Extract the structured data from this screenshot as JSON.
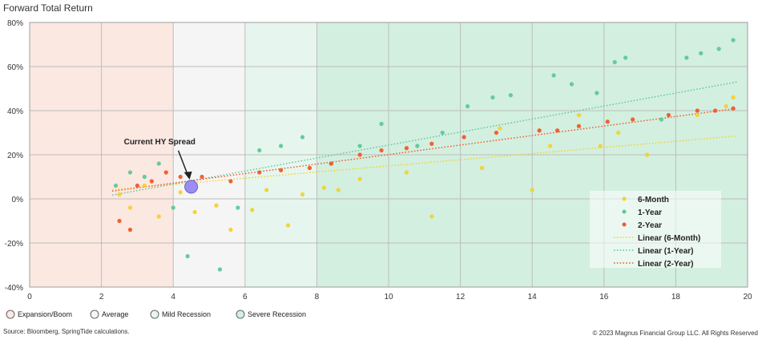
{
  "chart_data": {
    "type": "scatter",
    "title": "Forward Total Return",
    "xlabel": "",
    "ylabel": "",
    "xlim": [
      0,
      20
    ],
    "ylim": [
      -40,
      80
    ],
    "x_ticks": [
      "0",
      "2",
      "4",
      "6",
      "8",
      "10",
      "12",
      "14",
      "16",
      "18",
      "20"
    ],
    "y_ticks": [
      "-40%",
      "-20%",
      "0%",
      "20%",
      "40%",
      "60%",
      "80%"
    ],
    "grid": true,
    "legend_position": "right",
    "regimes": [
      {
        "name": "Expansion/Boom",
        "range": [
          0,
          4
        ],
        "color": "#fbe8e1"
      },
      {
        "name": "Average",
        "range": [
          4,
          6
        ],
        "color": "#f5f5f5"
      },
      {
        "name": "Mild Recession",
        "range": [
          6,
          8
        ],
        "color": "#e6f6ee"
      },
      {
        "name": "Severe Recession",
        "range": [
          8,
          20
        ],
        "color": "#d3efe0"
      }
    ],
    "annotation": {
      "text": "Current HY Spread",
      "x": 4.5,
      "y": 5.5
    },
    "series": [
      {
        "name": "6-Month",
        "color": "#f2d22e",
        "marker": "dot",
        "points": [
          [
            2.5,
            2
          ],
          [
            2.8,
            -4
          ],
          [
            3.2,
            6
          ],
          [
            3.6,
            -8
          ],
          [
            4.2,
            3
          ],
          [
            4.6,
            -6
          ],
          [
            5.2,
            -3
          ],
          [
            5.6,
            -14
          ],
          [
            6.2,
            -5
          ],
          [
            6.6,
            4
          ],
          [
            7.2,
            -12
          ],
          [
            7.6,
            2
          ],
          [
            8.2,
            5
          ],
          [
            8.6,
            4
          ],
          [
            9.2,
            9
          ],
          [
            10.5,
            12
          ],
          [
            11.2,
            -8
          ],
          [
            12.6,
            14
          ],
          [
            13.1,
            32
          ],
          [
            14.0,
            4
          ],
          [
            14.5,
            24
          ],
          [
            15.3,
            38
          ],
          [
            15.9,
            24
          ],
          [
            16.4,
            30
          ],
          [
            17.2,
            20
          ],
          [
            18.6,
            38
          ],
          [
            19.4,
            42
          ],
          [
            19.6,
            46
          ]
        ],
        "trend": [
          [
            2.3,
            4.2
          ],
          [
            19.7,
            28.5
          ]
        ]
      },
      {
        "name": "1-Year",
        "color": "#5fc79a",
        "marker": "dot",
        "points": [
          [
            2.4,
            6
          ],
          [
            2.8,
            12
          ],
          [
            3.2,
            10
          ],
          [
            3.6,
            16
          ],
          [
            4.0,
            -4
          ],
          [
            4.4,
            -26
          ],
          [
            5.3,
            -32
          ],
          [
            5.8,
            -4
          ],
          [
            6.4,
            22
          ],
          [
            7.0,
            24
          ],
          [
            7.6,
            28
          ],
          [
            8.4,
            16
          ],
          [
            9.2,
            24
          ],
          [
            9.8,
            34
          ],
          [
            10.8,
            24
          ],
          [
            11.5,
            30
          ],
          [
            12.2,
            42
          ],
          [
            12.9,
            46
          ],
          [
            13.4,
            47
          ],
          [
            14.6,
            56
          ],
          [
            15.1,
            52
          ],
          [
            15.8,
            48
          ],
          [
            16.3,
            62
          ],
          [
            16.6,
            64
          ],
          [
            17.6,
            36
          ],
          [
            18.3,
            64
          ],
          [
            18.7,
            66
          ],
          [
            19.2,
            68
          ],
          [
            19.6,
            72
          ]
        ],
        "trend": [
          [
            2.3,
            1.7
          ],
          [
            19.7,
            53
          ]
        ]
      },
      {
        "name": "2-Year",
        "color": "#ef5a28",
        "marker": "dot",
        "points": [
          [
            2.5,
            -10
          ],
          [
            2.8,
            -14
          ],
          [
            3.0,
            6
          ],
          [
            3.4,
            8
          ],
          [
            3.8,
            12
          ],
          [
            4.2,
            10
          ],
          [
            4.8,
            10
          ],
          [
            5.6,
            8
          ],
          [
            6.4,
            12
          ],
          [
            7.0,
            13
          ],
          [
            7.8,
            14
          ],
          [
            8.4,
            16
          ],
          [
            9.2,
            20
          ],
          [
            9.8,
            22
          ],
          [
            10.5,
            23
          ],
          [
            11.2,
            25
          ],
          [
            12.1,
            28
          ],
          [
            13.0,
            30
          ],
          [
            14.2,
            31
          ],
          [
            14.7,
            31
          ],
          [
            15.3,
            33
          ],
          [
            16.1,
            35
          ],
          [
            16.8,
            36
          ],
          [
            17.8,
            38
          ],
          [
            18.6,
            40
          ],
          [
            19.1,
            40
          ],
          [
            19.6,
            41
          ]
        ],
        "trend": [
          [
            2.3,
            3.5
          ],
          [
            19.7,
            41
          ]
        ]
      }
    ],
    "legend_labels": [
      "6-Month",
      "1-Year",
      "2-Year",
      "Linear (6-Month)",
      "Linear (1-Year)",
      "Linear (2-Year)"
    ]
  },
  "footer": {
    "source": "Source: Bloomberg, SpringTide calculations.",
    "copyright": "© 2023 Magnus Financial Group LLC. All Rights Reserved"
  }
}
